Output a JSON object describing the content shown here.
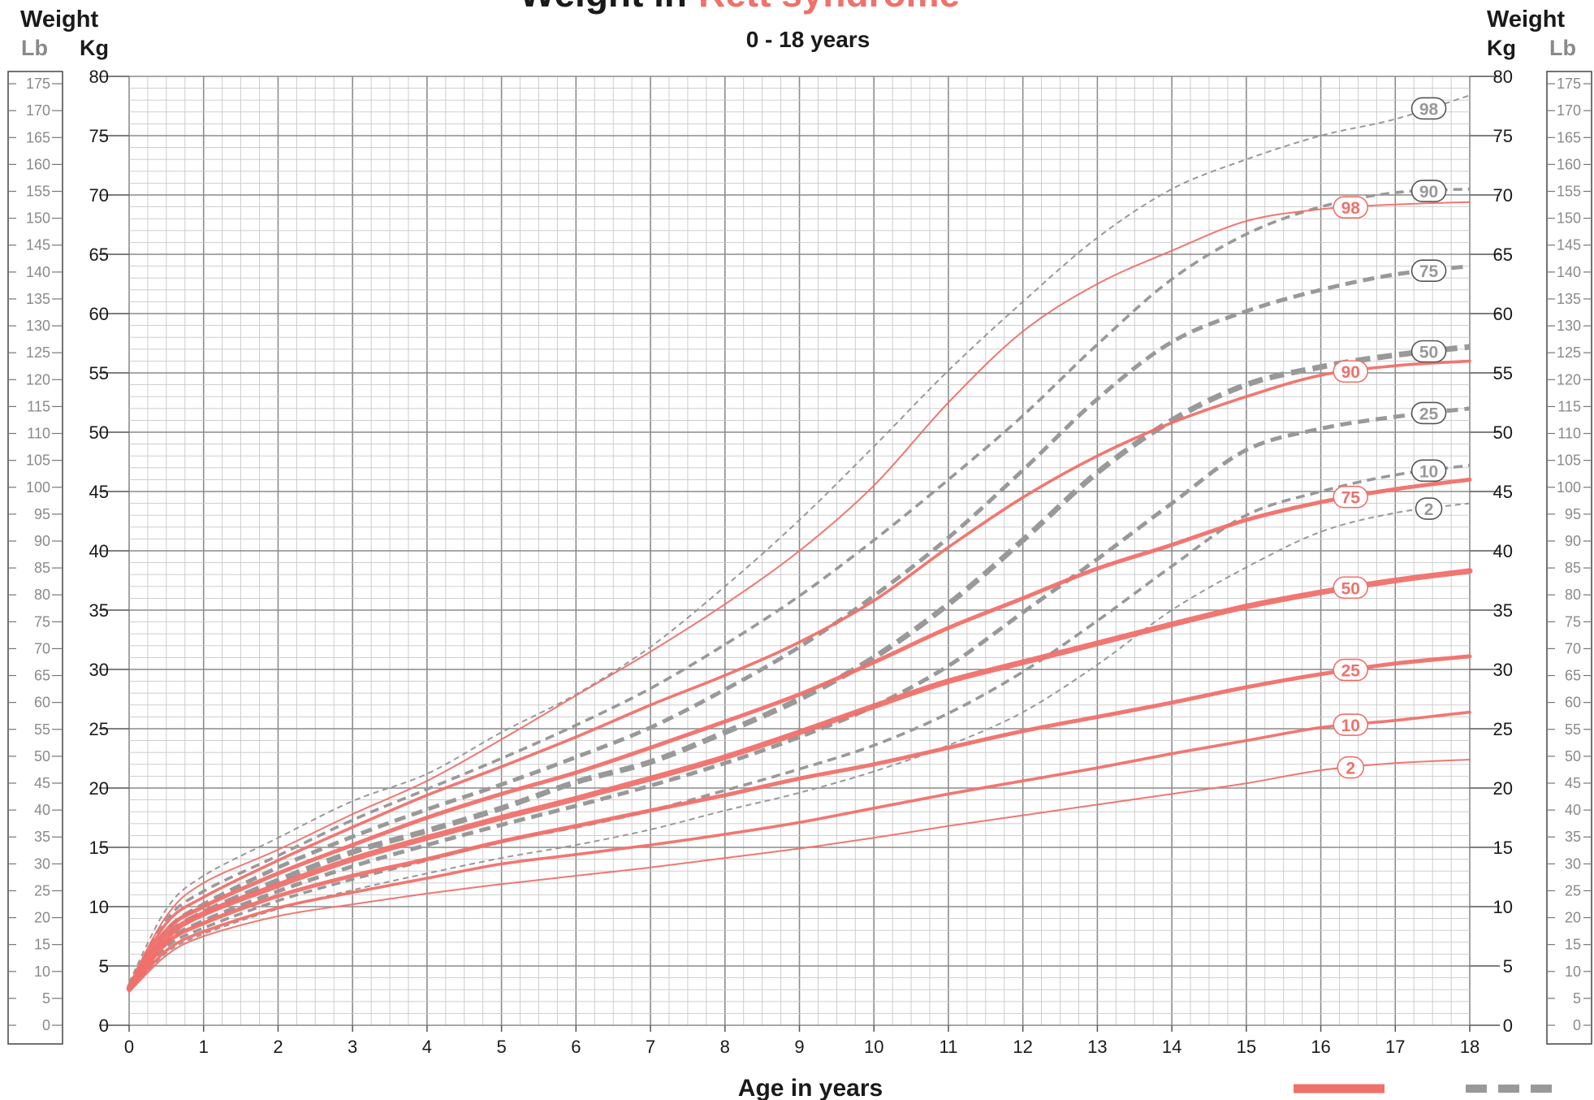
{
  "title": {
    "prefix": "Weight in",
    "highlight": "Rett syndrome",
    "subtitle": "0 - 18 years"
  },
  "axes": {
    "left_header": "Weight",
    "right_header": "Weight",
    "lb_label": "Lb",
    "kg_label": "Kg",
    "x_label": "Age in years"
  },
  "colors": {
    "rett": "#f0706a",
    "reference": "#999999",
    "grid_major": "#8c8c8c",
    "grid_minor": "#c8c8c8",
    "text": "#1a1a1a",
    "lb_text": "#8a8a8a"
  },
  "chart_data": {
    "type": "line",
    "title": "Weight in Rett syndrome",
    "subtitle": "0 - 18 years",
    "xlabel": "Age in years",
    "ylabel": "Weight Kg",
    "xlim": [
      0,
      18
    ],
    "ylim": [
      0,
      80
    ],
    "lb_lim": [
      0,
      175
    ],
    "grid": true,
    "x_ticks": [
      "0",
      "1",
      "2",
      "3",
      "4",
      "5",
      "6",
      "7",
      "8",
      "9",
      "10",
      "11",
      "12",
      "13",
      "14",
      "15",
      "16",
      "17",
      "18"
    ],
    "kg_ticks": [
      "0",
      "5",
      "10",
      "15",
      "20",
      "25",
      "30",
      "35",
      "40",
      "45",
      "50",
      "55",
      "60",
      "65",
      "70",
      "75",
      "80"
    ],
    "lb_ticks": [
      "0",
      "5",
      "10",
      "15",
      "20",
      "25",
      "30",
      "35",
      "40",
      "45",
      "50",
      "55",
      "60",
      "65",
      "70",
      "75",
      "80",
      "85",
      "90",
      "95",
      "100",
      "105",
      "110",
      "115",
      "120",
      "125",
      "130",
      "135",
      "140",
      "145",
      "150",
      "155",
      "160",
      "165",
      "170",
      "175"
    ],
    "x": [
      0,
      0.5,
      1,
      2,
      3,
      4,
      5,
      6,
      7,
      8,
      9,
      10,
      11,
      12,
      13,
      14,
      15,
      16,
      17,
      18
    ],
    "series": [
      {
        "name": "98",
        "group": "rett",
        "label_x": 16.4,
        "values": [
          3.4,
          9.2,
          12.0,
          14.8,
          17.8,
          20.6,
          24.1,
          27.8,
          31.5,
          35.5,
          40.0,
          45.5,
          52.5,
          58.5,
          62.5,
          65.3,
          67.8,
          68.8,
          69.2,
          69.4
        ]
      },
      {
        "name": "90",
        "group": "rett",
        "label_x": 16.4,
        "values": [
          3.3,
          8.6,
          10.8,
          13.9,
          16.7,
          19.4,
          21.8,
          24.3,
          27.0,
          29.5,
          32.3,
          35.8,
          40.3,
          44.5,
          48.0,
          50.8,
          53.0,
          54.8,
          55.6,
          56.0
        ]
      },
      {
        "name": "75",
        "group": "rett",
        "label_x": 16.4,
        "values": [
          3.2,
          8.0,
          10.0,
          12.8,
          15.2,
          17.5,
          19.5,
          21.3,
          23.4,
          25.6,
          27.9,
          30.6,
          33.5,
          36.0,
          38.5,
          40.5,
          42.6,
          44.1,
          45.2,
          46.0
        ]
      },
      {
        "name": "50",
        "group": "rett",
        "label_x": 16.4,
        "values": [
          3.1,
          7.4,
          9.4,
          11.8,
          14.0,
          15.8,
          17.5,
          19.1,
          20.8,
          22.6,
          24.7,
          26.9,
          29.0,
          30.6,
          32.2,
          33.8,
          35.3,
          36.5,
          37.5,
          38.3
        ]
      },
      {
        "name": "25",
        "group": "rett",
        "label_x": 16.4,
        "values": [
          3.0,
          6.9,
          8.6,
          10.9,
          12.6,
          14.0,
          15.5,
          16.8,
          18.1,
          19.4,
          20.8,
          22.0,
          23.4,
          24.8,
          26.0,
          27.2,
          28.5,
          29.6,
          30.5,
          31.1
        ]
      },
      {
        "name": "10",
        "group": "rett",
        "label_x": 16.4,
        "values": [
          2.9,
          6.3,
          7.9,
          9.9,
          11.2,
          12.4,
          13.6,
          14.4,
          15.2,
          16.1,
          17.1,
          18.3,
          19.5,
          20.6,
          21.7,
          22.9,
          24.0,
          25.1,
          25.7,
          26.4
        ]
      },
      {
        "name": "2",
        "group": "rett",
        "label_x": 16.4,
        "values": [
          2.8,
          5.9,
          7.5,
          9.2,
          10.2,
          11.1,
          11.9,
          12.6,
          13.3,
          14.1,
          14.9,
          15.8,
          16.8,
          17.7,
          18.6,
          19.5,
          20.4,
          21.5,
          22.1,
          22.4
        ]
      },
      {
        "name": "98",
        "group": "reference",
        "label_x": 17.45,
        "values": [
          3.6,
          9.8,
          12.6,
          15.8,
          18.9,
          21.2,
          24.7,
          27.9,
          31.9,
          37.0,
          42.6,
          48.8,
          55.2,
          61.0,
          66.4,
          70.5,
          73.0,
          75.0,
          76.4,
          78.4
        ]
      },
      {
        "name": "90",
        "group": "reference",
        "label_x": 17.45,
        "values": [
          3.4,
          8.9,
          11.3,
          14.3,
          17.3,
          19.9,
          22.5,
          25.3,
          28.4,
          32.1,
          36.2,
          40.9,
          46.0,
          51.4,
          57.4,
          62.9,
          66.7,
          69.0,
          70.2,
          70.5
        ]
      },
      {
        "name": "75",
        "group": "reference",
        "label_x": 17.45,
        "values": [
          3.3,
          8.0,
          10.2,
          13.3,
          15.9,
          18.2,
          20.3,
          22.6,
          25.1,
          28.3,
          31.9,
          36.2,
          41.1,
          46.8,
          52.8,
          57.6,
          60.2,
          62.0,
          63.3,
          64.0
        ]
      },
      {
        "name": "50",
        "group": "reference",
        "label_x": 17.45,
        "values": [
          3.2,
          7.5,
          9.5,
          12.2,
          14.6,
          16.4,
          18.3,
          20.5,
          22.2,
          24.7,
          27.5,
          31.0,
          35.5,
          40.9,
          46.6,
          51.0,
          54.0,
          55.5,
          56.5,
          57.2
        ]
      },
      {
        "name": "25",
        "group": "reference",
        "label_x": 17.45,
        "values": [
          3.1,
          7.0,
          8.8,
          11.3,
          13.4,
          15.2,
          16.9,
          18.5,
          20.2,
          22.1,
          24.3,
          26.9,
          30.3,
          34.8,
          39.3,
          44.0,
          48.5,
          50.3,
          51.3,
          52.0
        ]
      },
      {
        "name": "10",
        "group": "reference",
        "label_x": 17.45,
        "values": [
          3.0,
          6.6,
          8.2,
          10.5,
          12.3,
          13.9,
          15.5,
          16.7,
          18.1,
          19.8,
          21.6,
          23.6,
          26.3,
          29.8,
          34.1,
          38.7,
          43.0,
          45.0,
          46.4,
          47.2
        ]
      },
      {
        "name": "2",
        "group": "reference",
        "label_x": 17.45,
        "values": [
          2.9,
          6.1,
          7.7,
          9.8,
          11.4,
          12.8,
          14.1,
          15.2,
          16.5,
          18.1,
          19.6,
          21.4,
          23.6,
          26.4,
          30.4,
          35.0,
          38.6,
          41.6,
          43.2,
          44.0
        ]
      }
    ]
  }
}
